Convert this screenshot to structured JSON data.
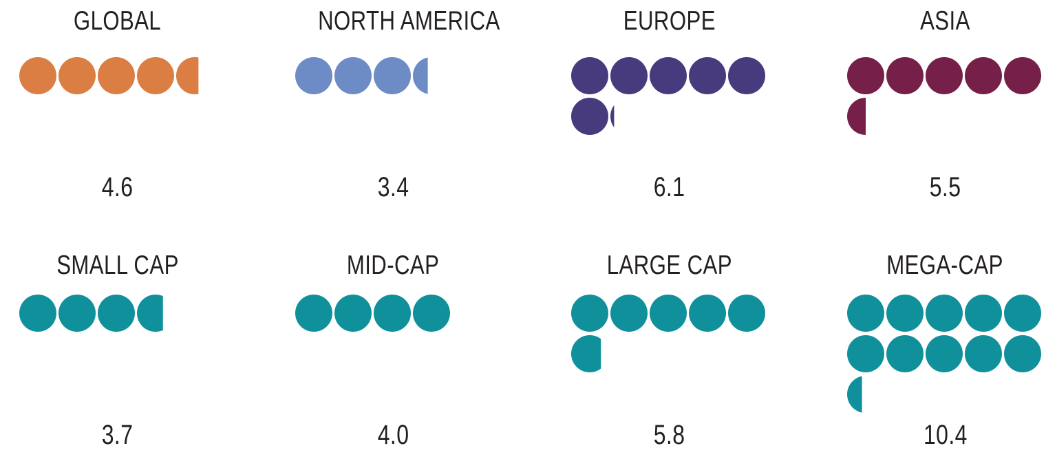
{
  "page": {
    "background": "#FFFFFF",
    "text_color": "#231F20"
  },
  "chart_data": {
    "type": "pictogram",
    "unit_shape": "circle",
    "units_per_pictogram_row": 5,
    "unit_value": 1,
    "legend_position": "none",
    "grid_layout": {
      "rows": 2,
      "columns": 4
    },
    "groups": [
      {
        "row": 1,
        "label": "GLOBAL",
        "value": 4.6,
        "display_value": "4.6",
        "color": "#DA7E44"
      },
      {
        "row": 1,
        "label": "NORTH AMERICA",
        "value": 3.4,
        "display_value": "3.4",
        "color": "#6D8BC5"
      },
      {
        "row": 1,
        "label": "EUROPE",
        "value": 6.1,
        "display_value": "6.1",
        "color": "#473B7E"
      },
      {
        "row": 1,
        "label": "ASIA",
        "value": 5.5,
        "display_value": "5.5",
        "color": "#762049"
      },
      {
        "row": 2,
        "label": "SMALL CAP",
        "value": 3.7,
        "display_value": "3.7",
        "color": "#0F909B"
      },
      {
        "row": 2,
        "label": "MID-CAP",
        "value": 4.0,
        "display_value": "4.0",
        "color": "#0F909B"
      },
      {
        "row": 2,
        "label": "LARGE CAP",
        "value": 5.8,
        "display_value": "5.8",
        "color": "#0F909B"
      },
      {
        "row": 2,
        "label": "MEGA-CAP",
        "value": 10.4,
        "display_value": "10.4",
        "color": "#0F909B"
      }
    ]
  }
}
